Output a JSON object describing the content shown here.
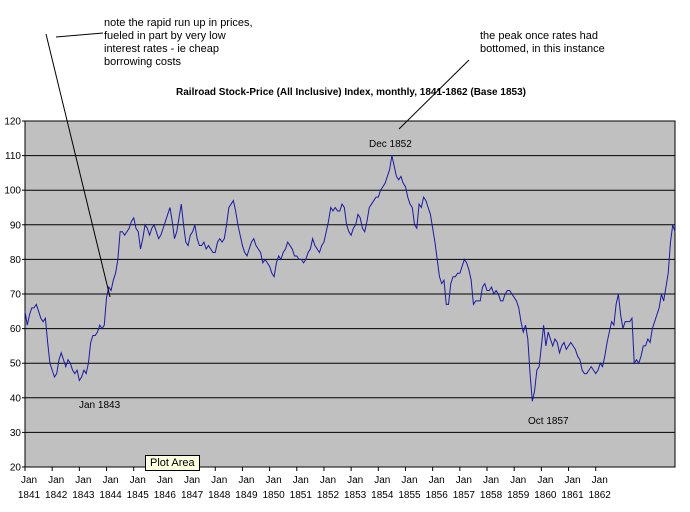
{
  "annotations": {
    "note_left": "note the rapid run up in prices,\nfueled in part by very low\ninterest rates - ie cheap\nborrowing costs",
    "note_right": "the peak once rates had\nbottomed, in this instance",
    "label_dec1852": "Dec 1852",
    "label_jan1843": "Jan 1843",
    "label_oct1857": "Oct 1857",
    "plot_area_tooltip": "Plot Area"
  },
  "chart_data": {
    "type": "line",
    "title": "Railroad Stock-Price (All Inclusive) Index, monthly, 1841-1862 (Base 1853)",
    "xlabel": "",
    "ylabel": "",
    "ylim": [
      20,
      120
    ],
    "yticks": [
      "20",
      "30",
      "40",
      "50",
      "60",
      "70",
      "80",
      "90",
      "100",
      "110",
      "120"
    ],
    "xticks": [
      {
        "top": "Jan",
        "bottom": "1841"
      },
      {
        "top": "Jan",
        "bottom": "1842"
      },
      {
        "top": "Jan",
        "bottom": "1843"
      },
      {
        "top": "Jan",
        "bottom": "1844"
      },
      {
        "top": "Jan",
        "bottom": "1845"
      },
      {
        "top": "Jan",
        "bottom": "1846"
      },
      {
        "top": "Jan",
        "bottom": "1847"
      },
      {
        "top": "Jan",
        "bottom": "1848"
      },
      {
        "top": "Jan",
        "bottom": "1849"
      },
      {
        "top": "Jan",
        "bottom": "1850"
      },
      {
        "top": "Jan",
        "bottom": "1851"
      },
      {
        "top": "Jan",
        "bottom": "1852"
      },
      {
        "top": "Jan",
        "bottom": "1853"
      },
      {
        "top": "Jan",
        "bottom": "1854"
      },
      {
        "top": "Jan",
        "bottom": "1855"
      },
      {
        "top": "Jan",
        "bottom": "1856"
      },
      {
        "top": "Jan",
        "bottom": "1857"
      },
      {
        "top": "Jan",
        "bottom": "1858"
      },
      {
        "top": "Jan",
        "bottom": "1859"
      },
      {
        "top": "Jan",
        "bottom": "1860"
      },
      {
        "top": "Jan",
        "bottom": "1861"
      },
      {
        "top": "Jan",
        "bottom": "1862"
      }
    ],
    "grid": true,
    "colors": {
      "plot_bg": "#c0c0c0",
      "line": "#1a1aa0",
      "grid": "#000000"
    },
    "series": [
      {
        "x_start": "1841-01",
        "x_step": "1 month",
        "values": [
          65,
          61,
          64,
          66,
          66,
          67,
          65,
          63,
          62,
          63,
          56,
          50,
          48,
          46,
          47,
          51,
          53,
          51,
          49,
          51,
          50,
          48,
          47,
          48,
          45,
          46,
          48,
          47,
          50,
          56,
          58,
          58,
          59,
          61,
          60,
          61,
          69,
          72,
          71,
          74,
          76,
          80,
          88,
          88,
          87,
          88,
          89,
          91,
          92,
          89,
          88,
          83,
          86,
          90,
          89,
          87,
          89,
          90,
          88,
          86,
          87,
          89,
          91,
          93,
          95,
          91,
          86,
          88,
          92,
          96,
          90,
          85,
          84,
          87,
          88,
          90,
          86,
          84,
          84,
          85,
          83,
          84,
          83,
          82,
          82,
          85,
          86,
          85,
          86,
          90,
          95,
          96,
          97,
          94,
          90,
          87,
          84,
          82,
          81,
          83,
          85,
          86,
          84,
          83,
          82,
          79,
          80,
          79,
          78,
          76,
          75,
          79,
          81,
          80,
          82,
          83,
          85,
          84,
          83,
          81,
          81,
          80,
          80,
          79,
          80,
          82,
          83,
          86,
          84,
          83,
          82,
          84,
          85,
          88,
          91,
          95,
          94,
          95,
          94,
          94,
          96,
          95,
          90,
          88,
          87,
          89,
          90,
          93,
          92,
          89,
          88,
          91,
          95,
          96,
          97,
          98,
          98,
          100,
          101,
          102,
          104,
          106,
          110,
          107,
          104,
          103,
          104,
          102,
          101,
          98,
          96,
          95,
          90,
          89,
          96,
          95,
          98,
          97,
          95,
          93,
          89,
          85,
          80,
          75,
          73,
          74,
          67,
          67,
          73,
          75,
          75,
          76,
          76,
          78,
          80,
          79,
          77,
          74,
          67,
          68,
          68,
          68,
          72,
          73,
          71,
          71,
          72,
          70,
          71,
          70,
          68,
          68,
          70,
          71,
          71,
          70,
          69,
          68,
          66,
          62,
          59,
          61,
          57,
          47,
          39,
          42,
          48,
          49,
          55,
          61,
          55,
          59,
          57,
          55,
          57,
          56,
          53,
          55,
          56,
          54,
          55,
          56,
          55,
          54,
          52,
          51,
          48,
          47,
          47,
          48,
          49,
          48,
          47,
          48,
          50,
          49,
          52,
          56,
          59,
          62,
          61,
          67,
          70,
          64,
          60,
          62,
          62,
          62,
          63,
          50,
          51,
          50,
          52,
          55,
          55,
          57,
          56,
          60,
          62,
          64,
          66,
          70,
          68,
          72,
          76,
          85,
          90,
          88
        ]
      }
    ]
  }
}
